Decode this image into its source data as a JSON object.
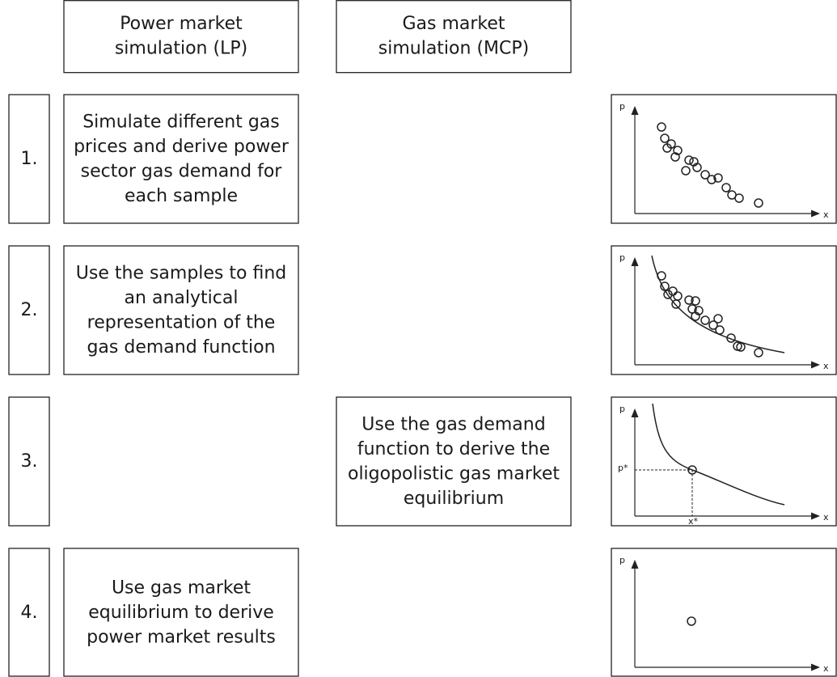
{
  "headers": [
    {
      "lines": [
        "Power market",
        "simulation (LP)"
      ]
    },
    {
      "lines": [
        "Gas market",
        "simulation (MCP)"
      ]
    }
  ],
  "steps": [
    {
      "number": "1.",
      "lines": [
        "Simulate different gas",
        "prices and derive power",
        "sector gas demand for",
        "each sample"
      ],
      "plot": {
        "y_label": "p",
        "x_label": "x"
      }
    },
    {
      "number": "2.",
      "lines": [
        "Use the samples to find",
        "an analytical",
        "representation of the",
        "gas demand function"
      ],
      "plot": {
        "y_label": "p",
        "x_label": "x"
      }
    },
    {
      "number": "3.",
      "lines": [
        "Use the gas demand",
        "function to derive the",
        "oligopolistic gas market",
        "equilibrium"
      ],
      "plot": {
        "y_label": "p",
        "x_label": "x",
        "p_star": "p*",
        "x_star": "x*"
      }
    },
    {
      "number": "4.",
      "lines": [
        "Use gas market",
        "equilibrium to derive",
        "power market results"
      ],
      "plot": {
        "y_label": "p",
        "x_label": "x"
      }
    }
  ]
}
